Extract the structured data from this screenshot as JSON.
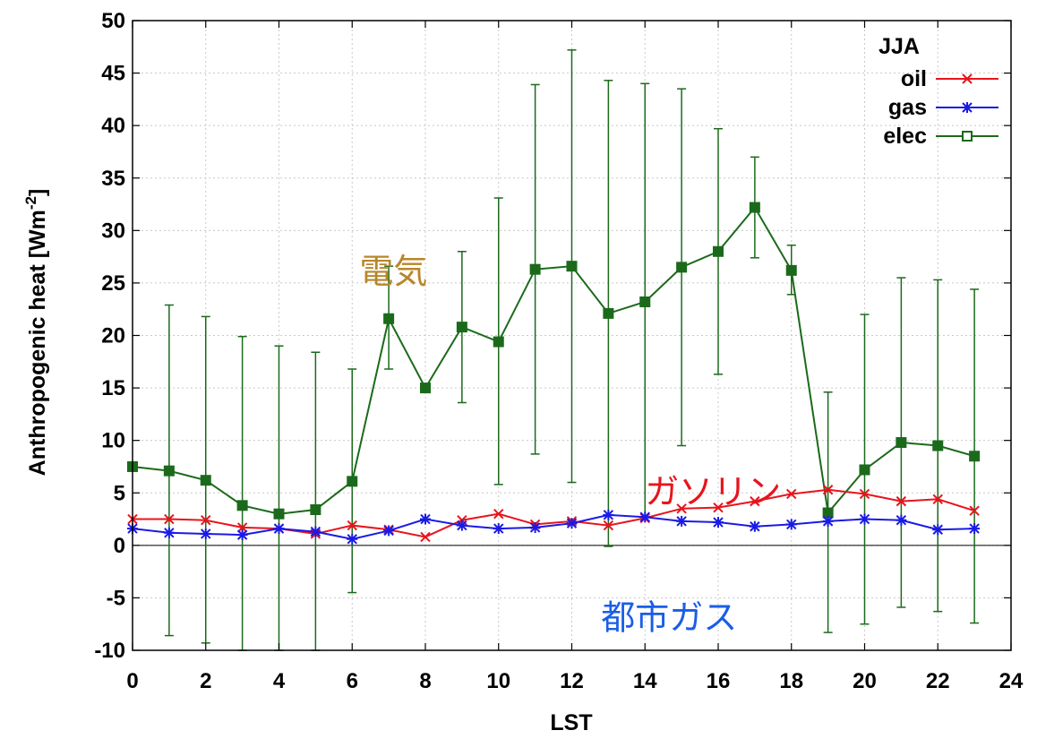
{
  "chart_data": {
    "type": "line",
    "xlabel": "LST",
    "ylabel": "Anthropogenic heat [Wm",
    "ylabel_sup": "-2",
    "ylabel_tail": "]",
    "xlim": [
      0,
      24
    ],
    "ylim": [
      -10,
      50
    ],
    "xticks": [
      0,
      2,
      4,
      6,
      8,
      10,
      12,
      14,
      16,
      18,
      20,
      22,
      24
    ],
    "yticks": [
      -10,
      -5,
      0,
      5,
      10,
      15,
      20,
      25,
      30,
      35,
      40,
      45,
      50
    ],
    "grid": true,
    "legend_title": "JJA",
    "legend_position": "top-right",
    "x": [
      0,
      1,
      2,
      3,
      4,
      5,
      6,
      7,
      8,
      9,
      10,
      11,
      12,
      13,
      14,
      15,
      16,
      17,
      18,
      19,
      20,
      21,
      22,
      23
    ],
    "series": [
      {
        "name": "oil",
        "color": "#e8141c",
        "marker": "x",
        "values": [
          2.5,
          2.5,
          2.4,
          1.7,
          1.6,
          1.1,
          1.9,
          1.5,
          0.8,
          2.4,
          3.0,
          2.0,
          2.3,
          1.9,
          2.6,
          3.5,
          3.6,
          4.2,
          4.9,
          5.3,
          4.9,
          4.2,
          4.4,
          3.3
        ]
      },
      {
        "name": "gas",
        "color": "#1a1ae6",
        "marker": "star",
        "values": [
          1.6,
          1.2,
          1.1,
          1.0,
          1.6,
          1.3,
          0.6,
          1.4,
          2.5,
          1.9,
          1.6,
          1.7,
          2.1,
          2.9,
          2.7,
          2.3,
          2.2,
          1.8,
          2.0,
          2.3,
          2.5,
          2.4,
          1.5,
          1.6
        ]
      },
      {
        "name": "elec",
        "color": "#1b6a1b",
        "marker": "square",
        "values": [
          7.5,
          7.1,
          6.2,
          3.8,
          3.0,
          3.4,
          6.1,
          21.6,
          15.0,
          20.8,
          19.4,
          26.3,
          26.6,
          22.1,
          23.2,
          26.5,
          28.0,
          32.2,
          26.2,
          3.1,
          7.2,
          9.8,
          9.5,
          8.5
        ],
        "err_upper": [
          7.5,
          22.9,
          21.8,
          19.9,
          19.0,
          18.4,
          16.8,
          26.6,
          15.0,
          28.0,
          33.1,
          43.9,
          47.2,
          44.3,
          44.0,
          43.5,
          39.7,
          37.0,
          28.6,
          14.6,
          22.0,
          25.5,
          25.3,
          24.4
        ],
        "err_lower": [
          7.5,
          -8.6,
          -9.3,
          -10.0,
          -10.0,
          -10.0,
          -4.5,
          16.8,
          15.0,
          13.6,
          5.8,
          8.7,
          6.0,
          -0.1,
          2.7,
          9.5,
          16.3,
          27.4,
          23.9,
          -8.3,
          -7.5,
          -5.9,
          -6.3,
          -7.4
        ]
      }
    ],
    "annotations": [
      {
        "text": "電気",
        "color": "#b8862a",
        "x": 6.2,
        "y": 25.0
      },
      {
        "text": "ガソリン",
        "color": "#e8141c",
        "x": 14.0,
        "y": 4.0
      },
      {
        "text": "都市ガス",
        "color": "#1a5ee6",
        "x": 12.8,
        "y": -8.0
      }
    ]
  }
}
